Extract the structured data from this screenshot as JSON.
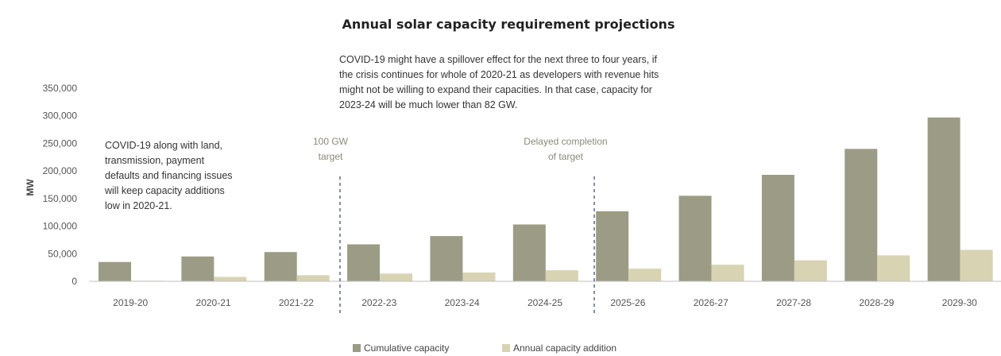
{
  "chart_data": {
    "type": "bar",
    "title": "Annual solar capacity requirement projections",
    "ylabel": "MW",
    "xlabel": "",
    "ylim": [
      0,
      350000
    ],
    "yticks": [
      0,
      50000,
      100000,
      150000,
      200000,
      250000,
      300000,
      350000
    ],
    "ytick_labels": [
      "0",
      "50,000",
      "100,000",
      "150,000",
      "200,000",
      "250,000",
      "300,000",
      "350,000"
    ],
    "categories": [
      "2019-20",
      "2020-21",
      "2021-22",
      "2022-23",
      "2023-24",
      "2024-25",
      "2025-26",
      "2026-27",
      "2027-28",
      "2028-29",
      "2029-30"
    ],
    "series": [
      {
        "name": "Cumulative capacity",
        "color": "#9c9c86",
        "values": [
          35000,
          45000,
          53000,
          67000,
          82000,
          103000,
          127000,
          155000,
          193000,
          240000,
          297000
        ]
      },
      {
        "name": "Annual capacity addition",
        "color": "#d8d3b2",
        "values": [
          1000,
          8000,
          11000,
          14000,
          16000,
          20000,
          23000,
          30000,
          38000,
          47000,
          57000
        ]
      }
    ],
    "grid": false,
    "legend_position": "bottom-center",
    "annotations": {
      "left_note": [
        "COVID-19 along with land,",
        "transmission, payment",
        "defaults and financing issues",
        "will keep capacity additions",
        "low in 2020-21."
      ],
      "top_note": [
        "COVID-19 might have a spillover effect for the next three to four years, if",
        "the crisis continues for whole of 2020-21 as developers with revenue hits",
        "might not be willing to expand their capacities. In that case, capacity for",
        "2023-24 will be much lower than 82 GW."
      ],
      "marker1": [
        "100 GW",
        "target"
      ],
      "marker2": [
        "Delayed completion",
        "of target"
      ]
    }
  }
}
